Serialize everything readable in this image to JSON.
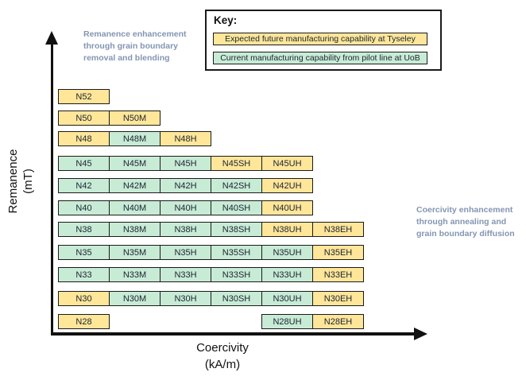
{
  "key": {
    "title": "Key:",
    "items": [
      {
        "label": "Expected future manufacturing capability at Tyseley",
        "status": "future",
        "color": "#FFE699"
      },
      {
        "label": "Current manufacturing capability from pilot line at UoB",
        "status": "current",
        "color": "#C8EBD5"
      }
    ]
  },
  "axes": {
    "y": {
      "lines": [
        "Remanence",
        "(mT)"
      ]
    },
    "x": {
      "lines": [
        "Coercivity",
        "(kA/m)"
      ]
    }
  },
  "annotations": {
    "left": {
      "lines": [
        "Remanence enhancement",
        "through grain boundary",
        "removal and blending"
      ],
      "color": "#8495B3"
    },
    "right": {
      "lines": [
        "Coercivity enhancement",
        "through annealing and",
        "grain boundary diffusion"
      ],
      "color": "#8495B3"
    }
  },
  "grid": {
    "column_suffixes": [
      "",
      "M",
      "H",
      "SH",
      "UH",
      "EH"
    ],
    "rows": [
      {
        "grade": "N52",
        "cells": [
          {
            "label": "N52",
            "col": 0,
            "status": "future"
          }
        ]
      },
      {
        "grade": "N50",
        "cells": [
          {
            "label": "N50",
            "col": 0,
            "status": "future"
          },
          {
            "label": "N50M",
            "col": 1,
            "status": "future"
          }
        ]
      },
      {
        "grade": "N48",
        "cells": [
          {
            "label": "N48",
            "col": 0,
            "status": "future"
          },
          {
            "label": "N48M",
            "col": 1,
            "status": "current"
          },
          {
            "label": "N48H",
            "col": 2,
            "status": "future"
          }
        ]
      },
      {
        "grade": "N45",
        "cells": [
          {
            "label": "N45",
            "col": 0,
            "status": "current"
          },
          {
            "label": "N45M",
            "col": 1,
            "status": "current"
          },
          {
            "label": "N45H",
            "col": 2,
            "status": "current"
          },
          {
            "label": "N45SH",
            "col": 3,
            "status": "future"
          },
          {
            "label": "N45UH",
            "col": 4,
            "status": "future"
          }
        ]
      },
      {
        "grade": "N42",
        "cells": [
          {
            "label": "N42",
            "col": 0,
            "status": "current"
          },
          {
            "label": "N42M",
            "col": 1,
            "status": "current"
          },
          {
            "label": "N42H",
            "col": 2,
            "status": "current"
          },
          {
            "label": "N42SH",
            "col": 3,
            "status": "current"
          },
          {
            "label": "N42UH",
            "col": 4,
            "status": "future"
          }
        ]
      },
      {
        "grade": "N40",
        "cells": [
          {
            "label": "N40",
            "col": 0,
            "status": "current"
          },
          {
            "label": "N40M",
            "col": 1,
            "status": "current"
          },
          {
            "label": "N40H",
            "col": 2,
            "status": "current"
          },
          {
            "label": "N40SH",
            "col": 3,
            "status": "current"
          },
          {
            "label": "N40UH",
            "col": 4,
            "status": "future"
          }
        ]
      },
      {
        "grade": "N38",
        "cells": [
          {
            "label": "N38",
            "col": 0,
            "status": "current"
          },
          {
            "label": "N38M",
            "col": 1,
            "status": "current"
          },
          {
            "label": "N38H",
            "col": 2,
            "status": "current"
          },
          {
            "label": "N38SH",
            "col": 3,
            "status": "current"
          },
          {
            "label": "N38UH",
            "col": 4,
            "status": "future"
          },
          {
            "label": "N38EH",
            "col": 5,
            "status": "future"
          }
        ]
      },
      {
        "grade": "N35",
        "cells": [
          {
            "label": "N35",
            "col": 0,
            "status": "current"
          },
          {
            "label": "N35M",
            "col": 1,
            "status": "current"
          },
          {
            "label": "N35H",
            "col": 2,
            "status": "current"
          },
          {
            "label": "N35SH",
            "col": 3,
            "status": "current"
          },
          {
            "label": "N35UH",
            "col": 4,
            "status": "current"
          },
          {
            "label": "N35EH",
            "col": 5,
            "status": "future"
          }
        ]
      },
      {
        "grade": "N33",
        "cells": [
          {
            "label": "N33",
            "col": 0,
            "status": "current"
          },
          {
            "label": "N33M",
            "col": 1,
            "status": "current"
          },
          {
            "label": "N33H",
            "col": 2,
            "status": "current"
          },
          {
            "label": "N33SH",
            "col": 3,
            "status": "current"
          },
          {
            "label": "N33UH",
            "col": 4,
            "status": "current"
          },
          {
            "label": "N33EH",
            "col": 5,
            "status": "future"
          }
        ]
      },
      {
        "grade": "N30",
        "cells": [
          {
            "label": "N30",
            "col": 0,
            "status": "future"
          },
          {
            "label": "N30M",
            "col": 1,
            "status": "current"
          },
          {
            "label": "N30H",
            "col": 2,
            "status": "current"
          },
          {
            "label": "N30SH",
            "col": 3,
            "status": "current"
          },
          {
            "label": "N30UH",
            "col": 4,
            "status": "current"
          },
          {
            "label": "N30EH",
            "col": 5,
            "status": "future"
          }
        ]
      },
      {
        "grade": "N28",
        "cells": [
          {
            "label": "N28",
            "col": 0,
            "status": "future"
          },
          {
            "label": "N28UH",
            "col": 4,
            "status": "current"
          },
          {
            "label": "N28EH",
            "col": 5,
            "status": "future"
          }
        ]
      }
    ]
  }
}
